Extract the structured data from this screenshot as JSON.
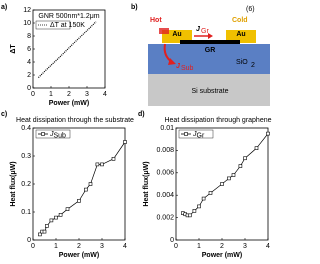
{
  "chart_data": [
    {
      "type": "line",
      "label": "a)",
      "title": "GNR 500nm*1.2μm",
      "x_label": "Power (mW)",
      "y_label": "ΔT",
      "xlim": [
        0,
        4
      ],
      "xticks": [
        0,
        1,
        2,
        3,
        4
      ],
      "ylim": [
        0,
        12
      ],
      "yticks": [
        0,
        2,
        4,
        6,
        8,
        10,
        12
      ],
      "legend": "upper left",
      "linestyle": "dotted",
      "markers": false,
      "series": [
        {
          "name": "ΔT at 150K",
          "color": "#000000",
          "x": [
            0.3,
            0.7,
            1.1,
            1.5,
            1.9,
            2.3,
            2.7,
            3.1,
            3.5
          ],
          "values": [
            1.6,
            2.7,
            3.75,
            4.8,
            5.9,
            7.0,
            8.05,
            9.1,
            10.2
          ]
        }
      ]
    },
    {
      "type": "line",
      "label": "c)",
      "title": "Heat dissipation through the substrate",
      "x_label": "Power (mW)",
      "y_label": "Heat flux(μW)",
      "xlim": [
        0,
        4
      ],
      "xticks": [
        0,
        1,
        2,
        3,
        4
      ],
      "ylim": [
        0,
        0.4
      ],
      "yticks": [
        0,
        0.1,
        0.2,
        0.3,
        0.4
      ],
      "legend": "upper left",
      "linestyle": "solid",
      "markers": true,
      "series": [
        {
          "name": "J",
          "name_sub": "Sub",
          "color": "#000000",
          "x": [
            0.3,
            0.4,
            0.5,
            0.6,
            0.8,
            1.0,
            1.2,
            1.5,
            2.0,
            2.3,
            2.5,
            2.8,
            3.0,
            3.5,
            4.0
          ],
          "values": [
            0.02,
            0.03,
            0.03,
            0.05,
            0.07,
            0.08,
            0.09,
            0.11,
            0.14,
            0.18,
            0.2,
            0.27,
            0.27,
            0.29,
            0.35
          ]
        }
      ]
    },
    {
      "type": "line",
      "label": "d)",
      "title": "Heat dissipation through graphene",
      "x_label": "Power (mW)",
      "y_label": "Heat flux(μW)",
      "xlim": [
        0,
        4
      ],
      "xticks": [
        0,
        1,
        2,
        3,
        4
      ],
      "ylim": [
        0,
        0.01
      ],
      "yticks": [
        0,
        0.002,
        0.004,
        0.006,
        0.008,
        0.01
      ],
      "legend": "upper left",
      "linestyle": "solid",
      "markers": true,
      "series": [
        {
          "name": "J",
          "name_sub": "Gr",
          "color": "#000000",
          "x": [
            0.3,
            0.4,
            0.5,
            0.6,
            0.8,
            1.0,
            1.2,
            1.5,
            2.0,
            2.3,
            2.5,
            2.8,
            3.0,
            3.5,
            4.0
          ],
          "values": [
            0.0024,
            0.0023,
            0.0022,
            0.0022,
            0.0026,
            0.003,
            0.0037,
            0.0042,
            0.005,
            0.0055,
            0.0058,
            0.0066,
            0.0073,
            0.0082,
            0.0095
          ]
        }
      ]
    }
  ],
  "diagram": {
    "label": "b)",
    "ref": "(6)",
    "hot": "Hot",
    "cold": "Cold",
    "au_left": "Au",
    "au_right": "Au",
    "j_gr": "J",
    "j_gr_sub": "Gr",
    "gr": "GR",
    "j_sub": "J",
    "j_sub_sub": "Sub",
    "sio2": "SiO",
    "sio2_sub": "2",
    "si": "Si substrate"
  }
}
